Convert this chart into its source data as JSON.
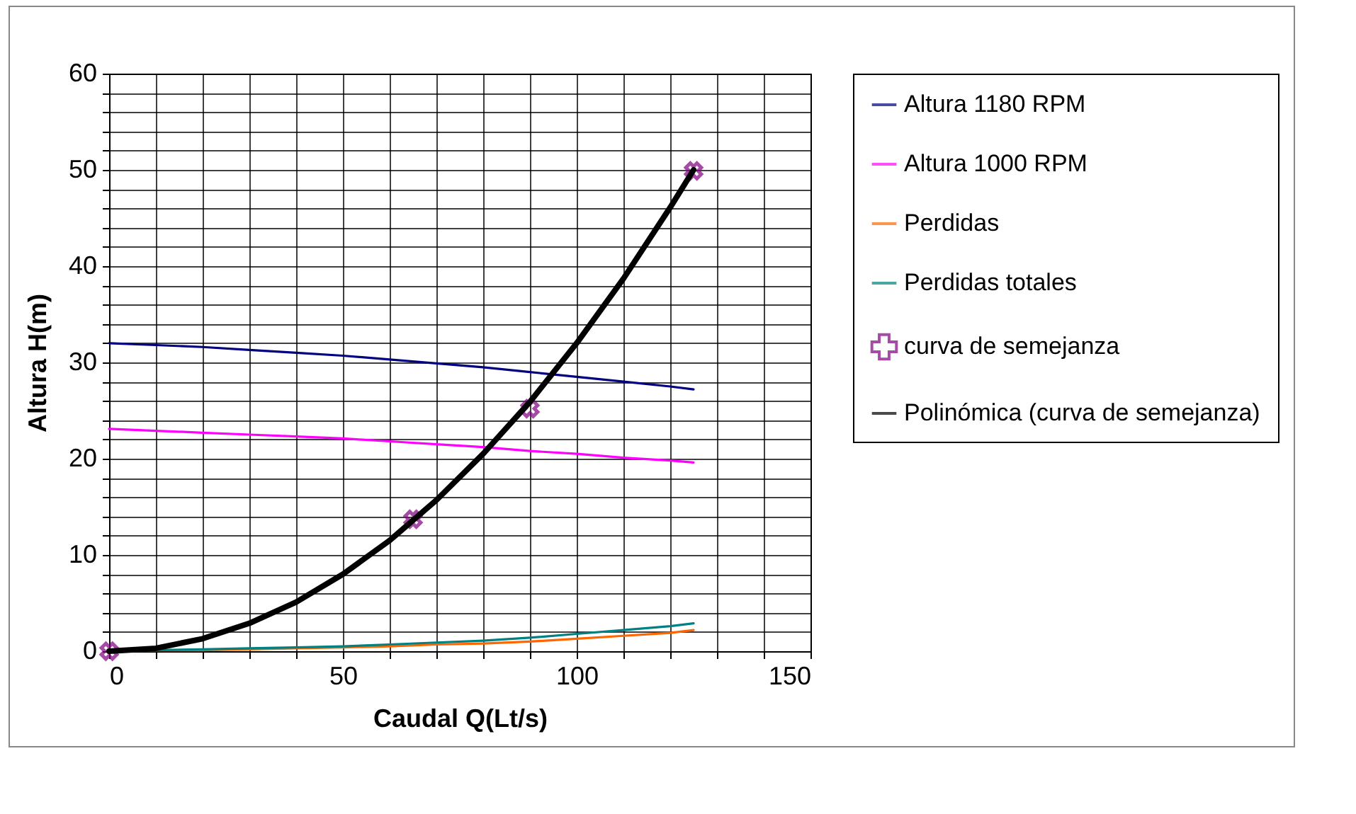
{
  "chart_data": {
    "type": "line",
    "xlabel": "Caudal Q(Lt/s)",
    "ylabel": "Altura H(m)",
    "x": [
      0,
      10,
      20,
      30,
      40,
      50,
      60,
      70,
      80,
      90,
      100,
      110,
      120,
      125
    ],
    "series": [
      {
        "name": "Altura  1180 RPM",
        "color": "#000080",
        "values": [
          32,
          31.8,
          31.6,
          31.3,
          31,
          30.7,
          30.3,
          29.9,
          29.5,
          29.0,
          28.5,
          28,
          27.5,
          27.2
        ]
      },
      {
        "name": "Altura  1000 RPM",
        "color": "#ff00ff",
        "values": [
          23.1,
          22.9,
          22.7,
          22.5,
          22.3,
          22.1,
          21.8,
          21.5,
          21.2,
          20.8,
          20.5,
          20.1,
          19.8,
          19.6
        ]
      },
      {
        "name": "Perdidas",
        "color": "#ff6600",
        "values": [
          0,
          0.1,
          0.1,
          0.2,
          0.3,
          0.4,
          0.5,
          0.7,
          0.8,
          1.0,
          1.3,
          1.6,
          1.9,
          2.2
        ]
      },
      {
        "name": "Perdidas totales",
        "color": "#008080",
        "values": [
          0,
          0.1,
          0.2,
          0.3,
          0.4,
          0.5,
          0.7,
          0.9,
          1.1,
          1.4,
          1.8,
          2.2,
          2.6,
          2.9
        ]
      },
      {
        "name": "curva de semejanza",
        "type": "scatter",
        "marker": "cross",
        "color": "#800080",
        "x": [
          0,
          65,
          90,
          125
        ],
        "values": [
          0,
          13.7,
          25.2,
          49.9
        ]
      },
      {
        "name": "Polinómica (curva de semejanza)",
        "type": "line",
        "color": "#000000",
        "x": [
          0,
          10,
          20,
          30,
          40,
          50,
          60,
          70,
          80,
          90,
          100,
          110,
          120,
          125
        ],
        "values": [
          0,
          0.3,
          1.3,
          2.9,
          5.1,
          8,
          11.5,
          15.7,
          20.5,
          25.9,
          32,
          38.7,
          46.1,
          50
        ]
      }
    ],
    "xlim": [
      0,
      150
    ],
    "xticks": [
      0,
      {
        "value": 10,
        "label": null
      },
      {
        "value": 20,
        "label": null
      },
      {
        "value": 30,
        "label": null
      },
      {
        "value": 40,
        "label": null
      },
      50,
      {
        "value": 60,
        "label": null
      },
      {
        "value": 70,
        "label": null
      },
      {
        "value": 80,
        "label": null
      },
      {
        "value": 90,
        "label": null
      },
      100,
      {
        "value": 110,
        "label": null
      },
      {
        "value": 120,
        "label": null
      },
      {
        "value": 130,
        "label": null
      },
      {
        "value": 140,
        "label": null
      },
      150
    ],
    "ylim": [
      0,
      60
    ],
    "yticks": [
      0,
      {
        "value": 2,
        "label": null
      },
      {
        "value": 4,
        "label": null
      },
      {
        "value": 6,
        "label": null
      },
      {
        "value": 8,
        "label": null
      },
      10,
      {
        "value": 12,
        "label": null
      },
      {
        "value": 14,
        "label": null
      },
      {
        "value": 16,
        "label": null
      },
      {
        "value": 18,
        "label": null
      },
      20,
      {
        "value": 22,
        "label": null
      },
      {
        "value": 24,
        "label": null
      },
      {
        "value": 26,
        "label": null
      },
      {
        "value": 28,
        "label": null
      },
      30,
      {
        "value": 32,
        "label": null
      },
      {
        "value": 34,
        "label": null
      },
      {
        "value": 36,
        "label": null
      },
      {
        "value": 38,
        "label": null
      },
      40,
      {
        "value": 42,
        "label": null
      },
      {
        "value": 44,
        "label": null
      },
      {
        "value": 46,
        "label": null
      },
      {
        "value": 48,
        "label": null
      },
      50,
      {
        "value": 52,
        "label": null
      },
      {
        "value": 54,
        "label": null
      },
      {
        "value": 56,
        "label": null
      },
      {
        "value": 58,
        "label": null
      },
      60
    ],
    "grid": true,
    "legend": "right"
  }
}
